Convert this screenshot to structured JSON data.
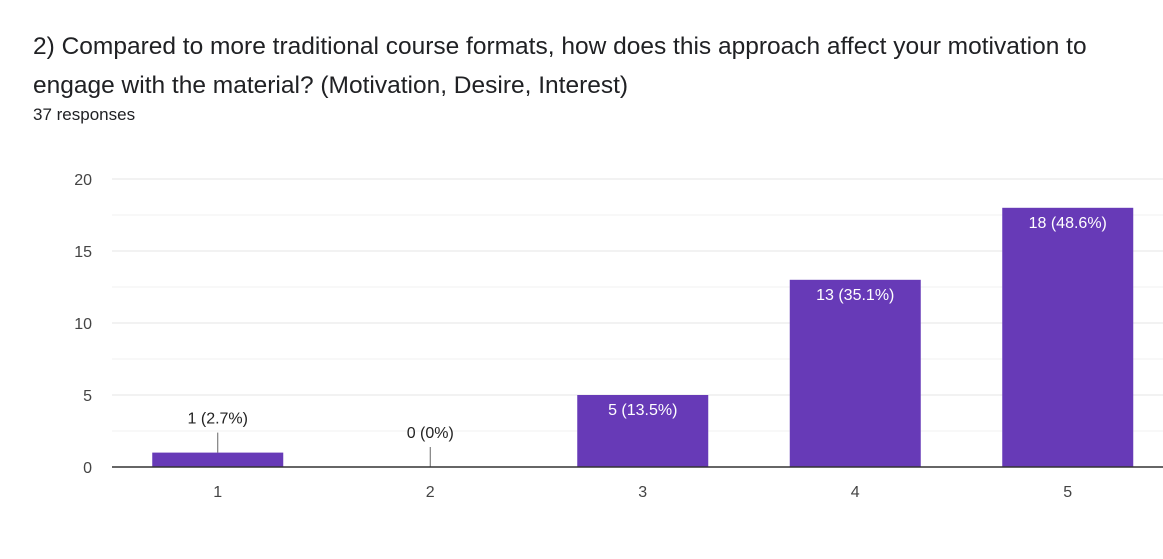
{
  "question": "2) Compared to more traditional course formats, how does this approach affect your motivation to engage with the material?  (Motivation, Desire, Interest)",
  "responses": "37 responses",
  "chart_data": {
    "type": "bar",
    "categories": [
      "1",
      "2",
      "3",
      "4",
      "5"
    ],
    "values": [
      1,
      0,
      5,
      13,
      18
    ],
    "labels": [
      "1 (2.7%)",
      "0 (0%)",
      "5 (13.5%)",
      "13 (35.1%)",
      "18 (48.6%)"
    ],
    "ylim": [
      0,
      20
    ],
    "yticks": [
      0,
      5,
      10,
      15,
      20
    ],
    "grid": true,
    "legend": "none",
    "bar_color": "#673ab7"
  }
}
